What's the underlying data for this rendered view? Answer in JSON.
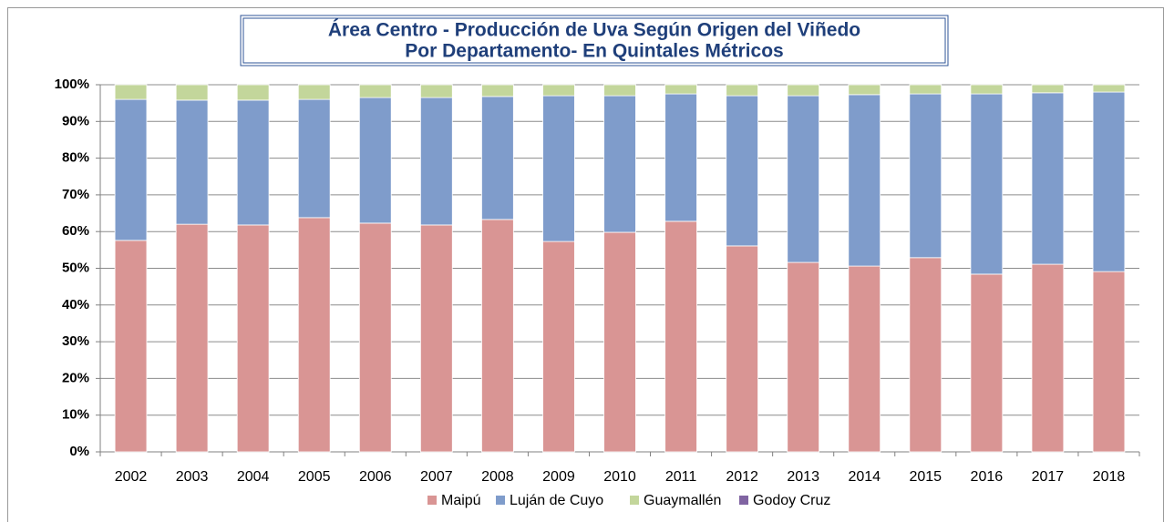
{
  "chart_data": {
    "type": "stacked_bar",
    "title": [
      "Área Centro - Producción de Uva Según Origen del Viñedo",
      "Por Departamento- En Quintales Métricos"
    ],
    "categories": [
      "2002",
      "2003",
      "2004",
      "2005",
      "2006",
      "2007",
      "2008",
      "2009",
      "2010",
      "2011",
      "2012",
      "2013",
      "2014",
      "2015",
      "2016",
      "2017",
      "2018"
    ],
    "series": [
      {
        "name": "Maipú",
        "color": "#d99594",
        "values": [
          57.6,
          62.0,
          61.8,
          63.8,
          62.3,
          61.8,
          63.3,
          57.3,
          59.8,
          62.8,
          56.1,
          51.6,
          50.6,
          52.9,
          48.4,
          51.1,
          49.1
        ]
      },
      {
        "name": "Luján de Cuyo",
        "color": "#7f9ccb",
        "values": [
          38.4,
          33.8,
          34.0,
          32.2,
          34.2,
          34.7,
          33.5,
          39.7,
          37.2,
          34.7,
          40.9,
          45.4,
          46.7,
          44.6,
          49.1,
          46.7,
          48.9
        ]
      },
      {
        "name": "Guaymallén",
        "color": "#c3d69b",
        "values": [
          4.0,
          4.2,
          4.2,
          4.0,
          3.5,
          3.5,
          3.2,
          3.0,
          3.0,
          2.5,
          3.0,
          3.0,
          2.7,
          2.5,
          2.5,
          2.2,
          2.0
        ]
      },
      {
        "name": "Godoy Cruz",
        "color": "#8064a2",
        "values": [
          0,
          0,
          0,
          0,
          0,
          0,
          0,
          0,
          0,
          0,
          0,
          0,
          0,
          0,
          0,
          0,
          0
        ]
      }
    ],
    "ylim": [
      0,
      100
    ],
    "yticks": [
      {
        "value": 0,
        "label": "0%"
      },
      {
        "value": 10,
        "label": "10%"
      },
      {
        "value": 20,
        "label": "20%"
      },
      {
        "value": 30,
        "label": "30%"
      },
      {
        "value": 40,
        "label": "40%"
      },
      {
        "value": 50,
        "label": "50%"
      },
      {
        "value": 60,
        "label": "60%"
      },
      {
        "value": 70,
        "label": "70%"
      },
      {
        "value": 80,
        "label": "80%"
      },
      {
        "value": 90,
        "label": "90%"
      },
      {
        "value": 100,
        "label": "100%"
      }
    ],
    "grid": true,
    "legend": "bottom"
  }
}
